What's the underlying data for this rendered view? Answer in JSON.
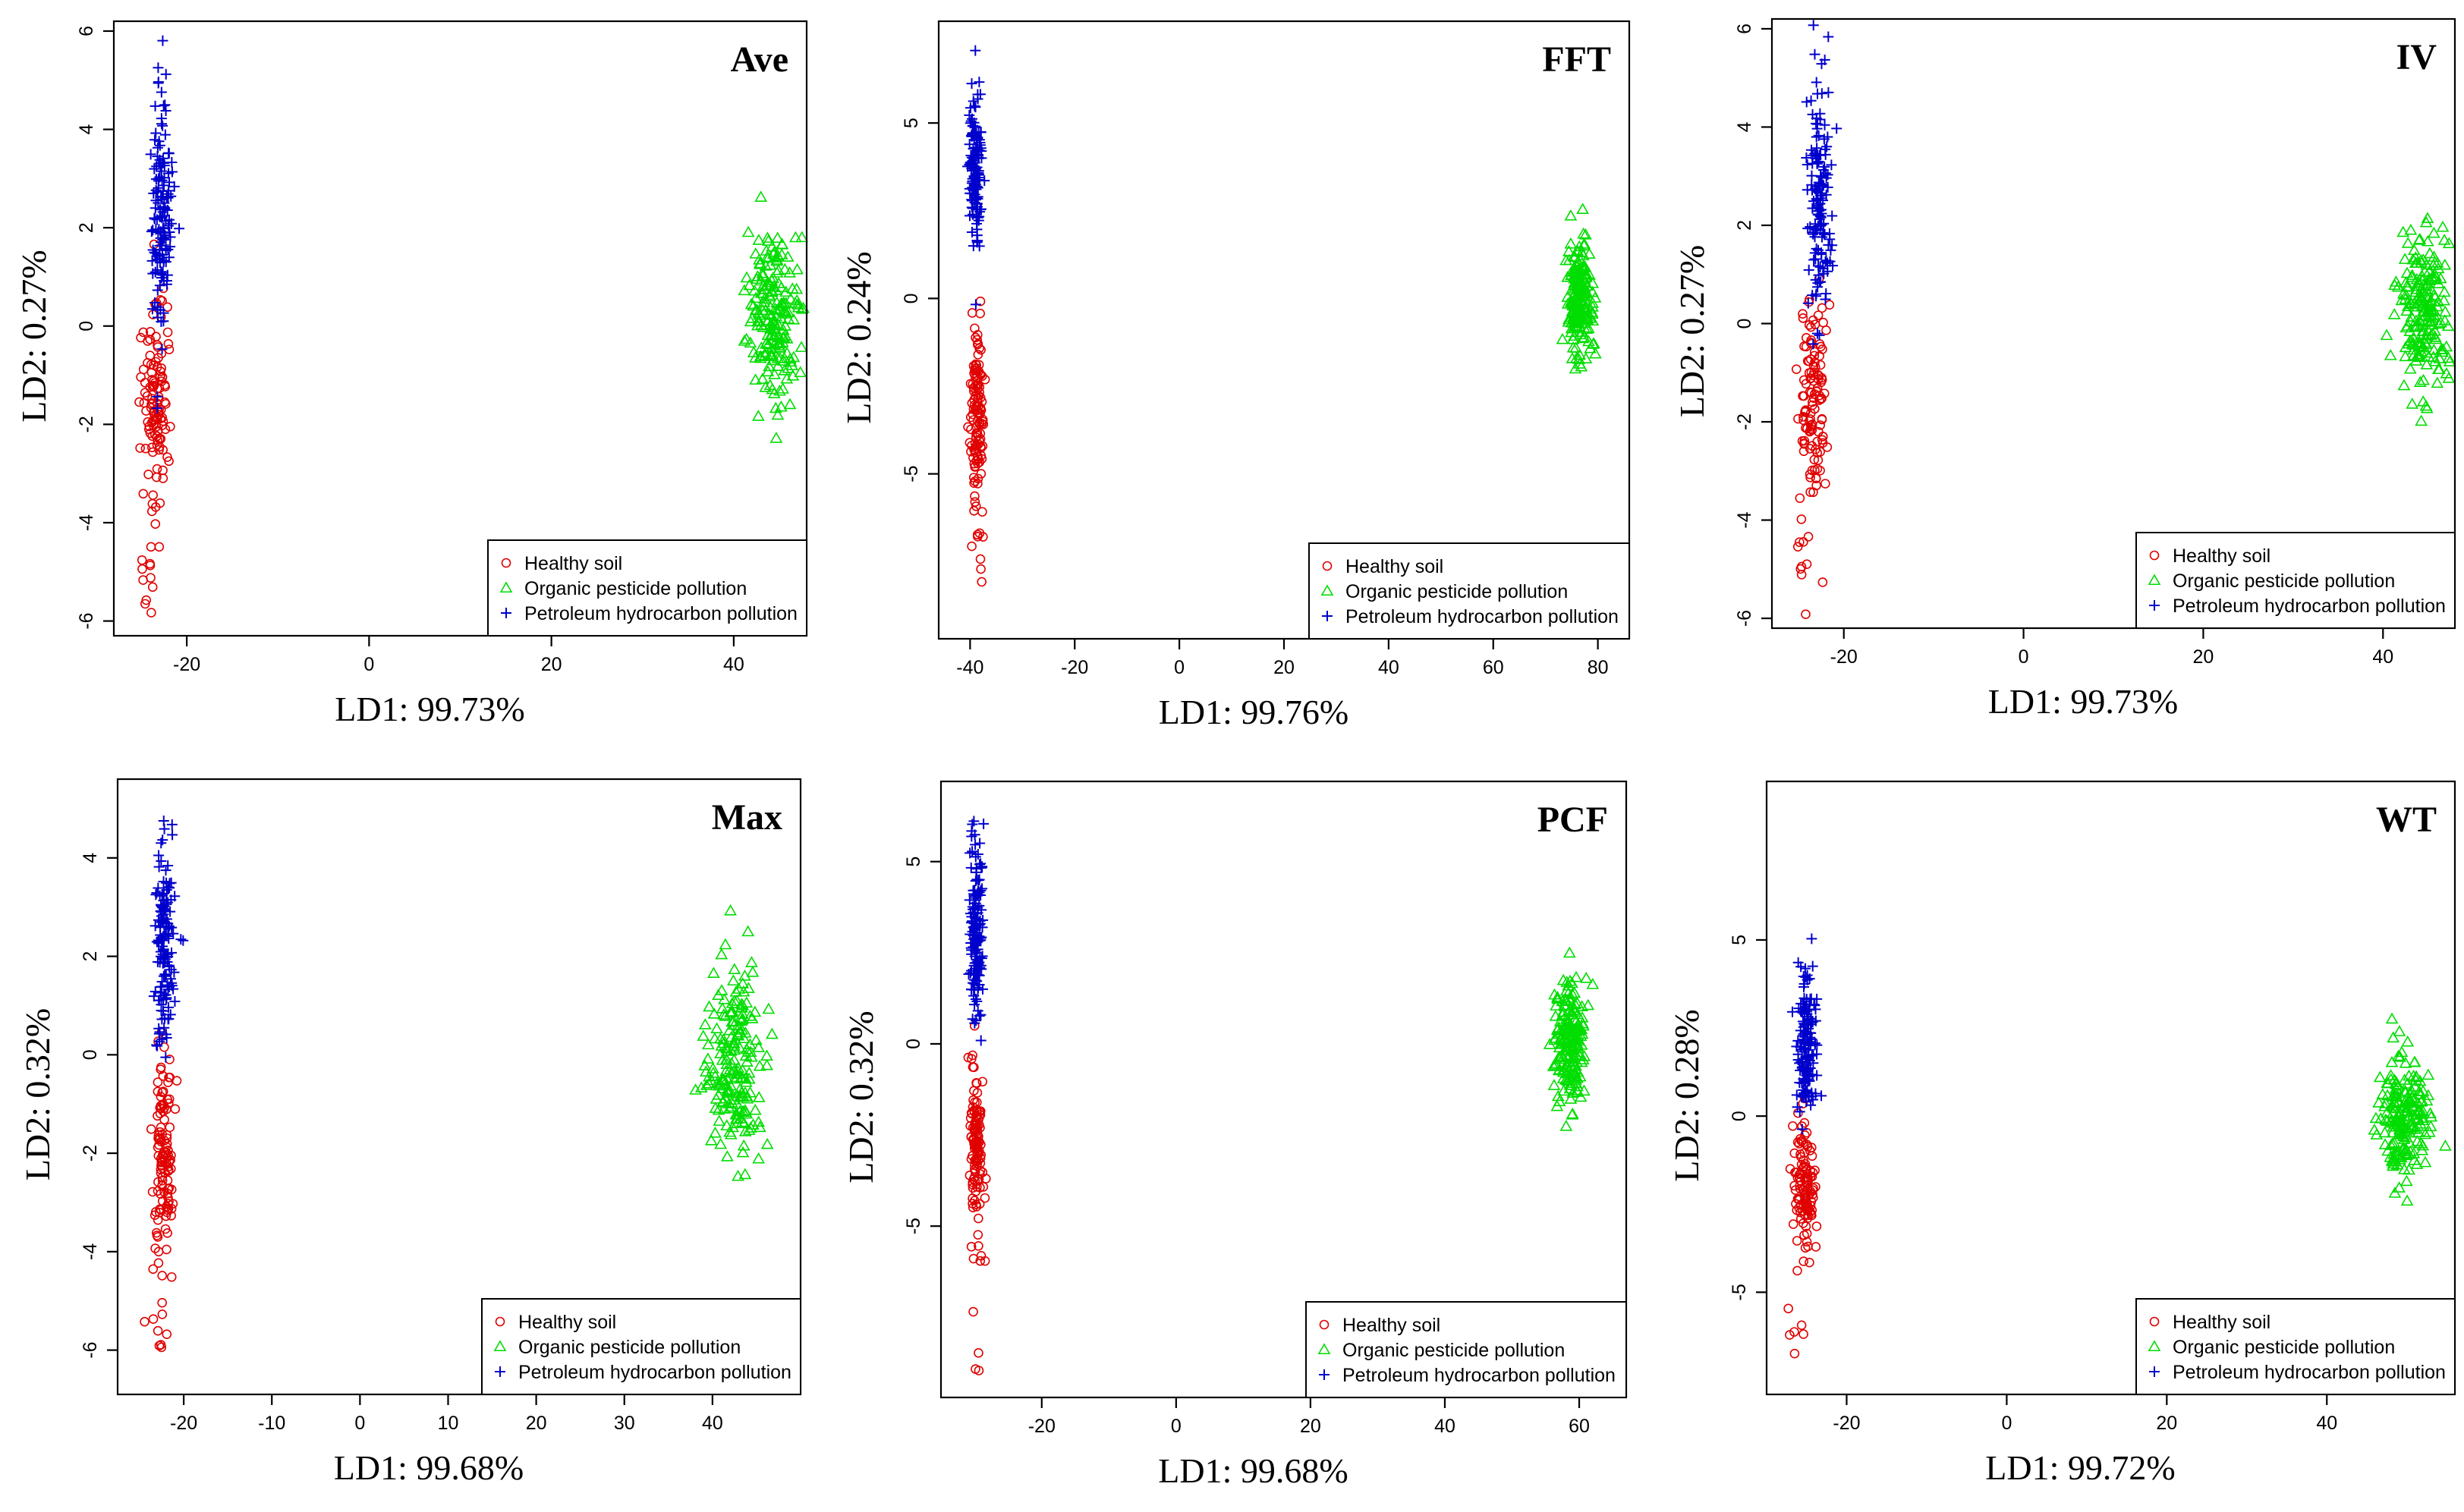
{
  "colors": {
    "healthy": "#e00000",
    "organic": "#00dd00",
    "petroleum": "#0000cc"
  },
  "legend_entries": [
    {
      "label": "Healthy soil",
      "marker": "circle",
      "color_key": "healthy"
    },
    {
      "label": "Organic pesticide pollution",
      "marker": "triangle",
      "color_key": "organic"
    },
    {
      "label": "Petroleum hydrocarbon pollution",
      "marker": "plus",
      "color_key": "petroleum"
    }
  ],
  "chart_data": [
    {
      "type": "scatter",
      "title": "Ave",
      "xlabel": "LD1: 99.73%",
      "ylabel": "LD2: 0.27%",
      "xlim": [
        -28,
        48
      ],
      "ylim": [
        -6.3,
        6.2
      ],
      "xticks": [
        -20,
        0,
        20,
        40
      ],
      "yticks": [
        -6,
        -4,
        -2,
        0,
        2,
        4,
        6
      ],
      "grid": false,
      "legend": "bottom-right",
      "series": [
        {
          "name": "Healthy soil",
          "marker": "circle",
          "color_key": "healthy",
          "clusters": [
            {
              "cx": -23.3,
              "cy": -1.6,
              "sx": 0.7,
              "sy": 1.0,
              "n": 120
            },
            {
              "cx": -24.3,
              "cy": -4.8,
              "sx": 0.7,
              "sy": 0.5,
              "n": 12
            }
          ]
        },
        {
          "name": "Organic pesticide pollution",
          "marker": "triangle",
          "color_key": "organic",
          "clusters": [
            {
              "cx": 44.5,
              "cy": 0.2,
              "sx": 1.5,
              "sy": 0.9,
              "n": 200
            }
          ]
        },
        {
          "name": "Petroleum hydrocarbon pollution",
          "marker": "plus",
          "color_key": "petroleum",
          "clusters": [
            {
              "cx": -22.7,
              "cy": 2.4,
              "sx": 0.6,
              "sy": 1.3,
              "n": 150
            }
          ]
        }
      ]
    },
    {
      "type": "scatter",
      "title": "FFT",
      "xlabel": "LD1: 99.76%",
      "ylabel": "LD2: 0.24%",
      "xlim": [
        -46,
        86
      ],
      "ylim": [
        -9.7,
        7.9
      ],
      "xticks": [
        -40,
        -20,
        0,
        20,
        40,
        60,
        80
      ],
      "yticks": [
        -5,
        0,
        5
      ],
      "grid": false,
      "legend": "bottom-right",
      "series": [
        {
          "name": "Healthy soil",
          "marker": "circle",
          "color_key": "healthy",
          "clusters": [
            {
              "cx": -38.7,
              "cy": -3.3,
              "sx": 0.6,
              "sy": 1.2,
              "n": 120
            },
            {
              "cx": -38.5,
              "cy": -7.5,
              "sx": 0.7,
              "sy": 0.8,
              "n": 8
            }
          ]
        },
        {
          "name": "Organic pesticide pollution",
          "marker": "triangle",
          "color_key": "organic",
          "clusters": [
            {
              "cx": 76.5,
              "cy": 0.0,
              "sx": 1.2,
              "sy": 0.9,
              "n": 200
            }
          ]
        },
        {
          "name": "Petroleum hydrocarbon pollution",
          "marker": "plus",
          "color_key": "petroleum",
          "clusters": [
            {
              "cx": -39.0,
              "cy": 3.7,
              "sx": 0.6,
              "sy": 1.2,
              "n": 150
            }
          ]
        }
      ]
    },
    {
      "type": "scatter",
      "title": "IV",
      "xlabel": "LD1: 99.73%",
      "ylabel": "LD2: 0.27%",
      "xlim": [
        -28,
        48
      ],
      "ylim": [
        -6.2,
        6.2
      ],
      "xticks": [
        -20,
        0,
        20,
        40
      ],
      "yticks": [
        -6,
        -4,
        -2,
        0,
        2,
        4,
        6
      ],
      "grid": false,
      "legend": "bottom-right",
      "series": [
        {
          "name": "Healthy soil",
          "marker": "circle",
          "color_key": "healthy",
          "clusters": [
            {
              "cx": -23.3,
              "cy": -1.6,
              "sx": 0.7,
              "sy": 1.0,
              "n": 120
            },
            {
              "cx": -24.3,
              "cy": -4.8,
              "sx": 0.7,
              "sy": 0.5,
              "n": 12
            }
          ]
        },
        {
          "name": "Organic pesticide pollution",
          "marker": "triangle",
          "color_key": "organic",
          "clusters": [
            {
              "cx": 44.5,
              "cy": 0.1,
              "sx": 1.5,
              "sy": 0.9,
              "n": 200
            }
          ]
        },
        {
          "name": "Petroleum hydrocarbon pollution",
          "marker": "plus",
          "color_key": "petroleum",
          "clusters": [
            {
              "cx": -22.7,
              "cy": 2.4,
              "sx": 0.6,
              "sy": 1.3,
              "n": 150
            }
          ]
        }
      ]
    },
    {
      "type": "scatter",
      "title": "Max",
      "xlabel": "LD1: 99.68%",
      "ylabel": "LD2: 0.32%",
      "xlim": [
        -27.5,
        50
      ],
      "ylim": [
        -6.9,
        5.6
      ],
      "xticks": [
        -20,
        -10,
        0,
        10,
        20,
        30,
        40
      ],
      "yticks": [
        -6,
        -4,
        -2,
        0,
        2,
        4
      ],
      "grid": false,
      "legend": "bottom-right",
      "series": [
        {
          "name": "Healthy soil",
          "marker": "circle",
          "color_key": "healthy",
          "clusters": [
            {
              "cx": -22.3,
              "cy": -2.0,
              "sx": 0.6,
              "sy": 1.0,
              "n": 120
            },
            {
              "cx": -23.0,
              "cy": -5.4,
              "sx": 0.8,
              "sy": 0.5,
              "n": 10
            }
          ]
        },
        {
          "name": "Organic pesticide pollution",
          "marker": "triangle",
          "color_key": "organic",
          "clusters": [
            {
              "cx": 42.5,
              "cy": -0.2,
              "sx": 1.5,
              "sy": 1.0,
              "n": 200
            }
          ]
        },
        {
          "name": "Petroleum hydrocarbon pollution",
          "marker": "plus",
          "color_key": "petroleum",
          "clusters": [
            {
              "cx": -22.2,
              "cy": 2.4,
              "sx": 0.6,
              "sy": 1.1,
              "n": 150
            }
          ]
        }
      ]
    },
    {
      "type": "scatter",
      "title": "PCF",
      "xlabel": "LD1: 99.68%",
      "ylabel": "LD2: 0.32%",
      "xlim": [
        -35,
        67
      ],
      "ylim": [
        -9.7,
        7.2
      ],
      "xticks": [
        -20,
        0,
        20,
        40,
        60
      ],
      "yticks": [
        -5,
        0,
        5
      ],
      "grid": false,
      "legend": "bottom-right",
      "series": [
        {
          "name": "Healthy soil",
          "marker": "circle",
          "color_key": "healthy",
          "clusters": [
            {
              "cx": -29.7,
              "cy": -2.9,
              "sx": 0.5,
              "sy": 1.1,
              "n": 120
            },
            {
              "cx": -29.7,
              "cy": -7.3,
              "sx": 0.6,
              "sy": 1.0,
              "n": 8
            }
          ]
        },
        {
          "name": "Organic pesticide pollution",
          "marker": "triangle",
          "color_key": "organic",
          "clusters": [
            {
              "cx": 58.5,
              "cy": 0.1,
              "sx": 1.2,
              "sy": 0.8,
              "n": 200
            }
          ]
        },
        {
          "name": "Petroleum hydrocarbon pollution",
          "marker": "plus",
          "color_key": "petroleum",
          "clusters": [
            {
              "cx": -29.8,
              "cy": 3.1,
              "sx": 0.5,
              "sy": 1.2,
              "n": 150
            }
          ]
        }
      ]
    },
    {
      "type": "scatter",
      "title": "WT",
      "xlabel": "LD1: 99.72%",
      "ylabel": "LD2: 0.28%",
      "xlim": [
        -30,
        56
      ],
      "ylim": [
        -7.9,
        9.5
      ],
      "xticks": [
        -20,
        0,
        20,
        40
      ],
      "yticks": [
        -5,
        0,
        5
      ],
      "grid": false,
      "legend": "bottom-right",
      "series": [
        {
          "name": "Healthy soil",
          "marker": "circle",
          "color_key": "healthy",
          "clusters": [
            {
              "cx": -25.2,
              "cy": -2.0,
              "sx": 0.6,
              "sy": 0.9,
              "n": 120
            },
            {
              "cx": -26.3,
              "cy": -5.9,
              "sx": 0.7,
              "sy": 0.6,
              "n": 6
            }
          ]
        },
        {
          "name": "Organic pesticide pollution",
          "marker": "triangle",
          "color_key": "organic",
          "clusters": [
            {
              "cx": 49.5,
              "cy": -0.1,
              "sx": 1.5,
              "sy": 0.8,
              "n": 200
            }
          ]
        },
        {
          "name": "Petroleum hydrocarbon pollution",
          "marker": "plus",
          "color_key": "petroleum",
          "clusters": [
            {
              "cx": -25.0,
              "cy": 2.1,
              "sx": 0.6,
              "sy": 1.1,
              "n": 150
            }
          ]
        }
      ]
    }
  ]
}
